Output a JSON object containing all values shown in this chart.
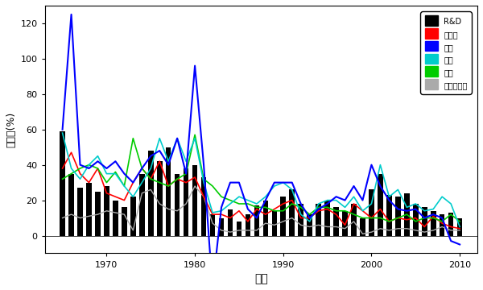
{
  "years": [
    1965,
    1966,
    1967,
    1968,
    1969,
    1970,
    1971,
    1972,
    1973,
    1974,
    1975,
    1976,
    1977,
    1978,
    1979,
    1980,
    1981,
    1982,
    1983,
    1984,
    1985,
    1986,
    1987,
    1988,
    1989,
    1990,
    1991,
    1992,
    1993,
    1994,
    1995,
    1996,
    1997,
    1998,
    1999,
    2000,
    2001,
    2002,
    2003,
    2004,
    2005,
    2006,
    2007,
    2008,
    2009,
    2010
  ],
  "rd": [
    59,
    35,
    27,
    30,
    25,
    28,
    20,
    16,
    22,
    35,
    48,
    42,
    50,
    35,
    38,
    40,
    33,
    12,
    10,
    15,
    8,
    12,
    17,
    20,
    14,
    22,
    26,
    18,
    12,
    18,
    20,
    16,
    14,
    18,
    10,
    26,
    35,
    23,
    22,
    24,
    18,
    16,
    14,
    12,
    13,
    10
  ],
  "total_budget": [
    38,
    47,
    35,
    30,
    38,
    24,
    22,
    20,
    30,
    38,
    32,
    42,
    28,
    32,
    30,
    33,
    22,
    12,
    12,
    10,
    14,
    8,
    15,
    12,
    15,
    18,
    20,
    10,
    10,
    14,
    15,
    12,
    6,
    18,
    14,
    10,
    15,
    8,
    10,
    9,
    10,
    5,
    11,
    7,
    5,
    4
  ],
  "welfare": [
    60,
    125,
    40,
    38,
    42,
    38,
    42,
    35,
    30,
    38,
    45,
    48,
    40,
    55,
    35,
    96,
    40,
    -30,
    16,
    30,
    30,
    15,
    10,
    20,
    30,
    30,
    30,
    18,
    10,
    15,
    18,
    22,
    20,
    28,
    20,
    40,
    28,
    20,
    15,
    14,
    15,
    10,
    12,
    10,
    -3,
    -5
  ],
  "education": [
    58,
    38,
    32,
    40,
    45,
    35,
    35,
    28,
    22,
    30,
    38,
    55,
    42,
    55,
    42,
    55,
    30,
    13,
    14,
    18,
    22,
    20,
    18,
    22,
    28,
    30,
    26,
    12,
    8,
    18,
    20,
    20,
    16,
    22,
    14,
    18,
    40,
    22,
    26,
    16,
    18,
    14,
    15,
    22,
    18,
    5
  ],
  "defense": [
    32,
    35,
    38,
    40,
    38,
    30,
    36,
    28,
    55,
    38,
    32,
    30,
    28,
    32,
    35,
    57,
    32,
    28,
    22,
    20,
    18,
    18,
    16,
    16,
    14,
    14,
    18,
    16,
    12,
    16,
    16,
    14,
    14,
    12,
    10,
    10,
    10,
    8,
    10,
    12,
    8,
    10,
    10,
    8,
    12,
    8
  ],
  "inflation": [
    10,
    12,
    10,
    11,
    12,
    14,
    13,
    12,
    3,
    24,
    26,
    18,
    15,
    14,
    18,
    28,
    22,
    7,
    3,
    2,
    3,
    3,
    3,
    7,
    6,
    8,
    10,
    6,
    5,
    6,
    5,
    5,
    4,
    8,
    1,
    2,
    4,
    3,
    4,
    4,
    3,
    2,
    3,
    5,
    3,
    3
  ],
  "xlim": [
    1963,
    2012
  ],
  "ylim": [
    -10,
    130
  ],
  "yticks": [
    0,
    20,
    40,
    60,
    80,
    100,
    120
  ],
  "xticks": [
    1970,
    1980,
    1990,
    2000,
    2010
  ],
  "xlabel": "년도",
  "ylabel": "증가율(%)",
  "legend_labels": [
    "R&D",
    "총예산",
    "복지",
    "교육",
    "국방",
    "물가상승률"
  ],
  "colors": {
    "rd": "#000000",
    "total_budget": "#FF0000",
    "welfare": "#0000FF",
    "education": "#00CCCC",
    "defense": "#00CC00",
    "inflation": "#AAAAAA"
  },
  "background_color": "#FFFFFF"
}
